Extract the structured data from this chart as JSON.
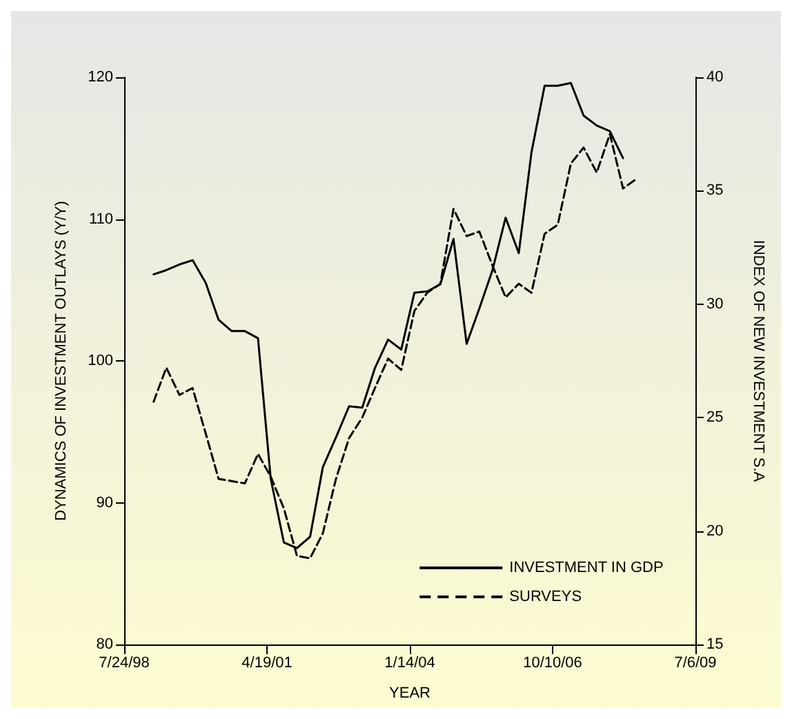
{
  "chart_data": {
    "type": "line",
    "xlabel": "YEAR",
    "ylabel": "DYNAMICS OF INVESTMENT OUTLAYS (Y/Y)",
    "y2label": "INDEX OF NEW INVESTMENT S.A",
    "x": [
      "1999-02-15",
      "1999-05-15",
      "1999-08-15",
      "1999-11-15",
      "2000-02-15",
      "2000-05-15",
      "2000-08-15",
      "2000-11-15",
      "2001-02-15",
      "2001-05-15",
      "2001-08-15",
      "2001-11-15",
      "2002-02-15",
      "2002-05-15",
      "2002-08-15",
      "2002-11-15",
      "2003-02-15",
      "2003-05-15",
      "2003-08-15",
      "2003-11-15",
      "2004-02-15",
      "2004-05-15",
      "2004-08-15",
      "2004-11-15",
      "2005-02-15",
      "2005-05-15",
      "2005-08-15",
      "2005-11-15",
      "2006-02-15",
      "2006-05-15",
      "2006-08-15",
      "2006-11-15",
      "2007-02-15",
      "2007-05-15",
      "2007-08-15",
      "2007-11-15",
      "2008-02-15",
      "2008-05-15"
    ],
    "series": [
      {
        "name": "INVESTMENT IN GDP",
        "color": "#000000",
        "line_style": "solid",
        "values": [
          106.1,
          106.4,
          106.8,
          107.1,
          105.5,
          102.9,
          102.1,
          102.1,
          101.6,
          91.7,
          87.2,
          86.8,
          87.6,
          92.5,
          94.6,
          96.8,
          96.7,
          99.5,
          101.5,
          100.8,
          104.8,
          104.9,
          105.4,
          108.6,
          101.2,
          103.7,
          106.4,
          110.1,
          107.6,
          114.7,
          119.4,
          119.4,
          119.6,
          117.3,
          116.6,
          116.2,
          114.3,
          null
        ]
      },
      {
        "name": "SURVEYS",
        "color": "#000000",
        "line_style": "dashed",
        "axis": "y2",
        "values": [
          25.7,
          27.2,
          26.0,
          26.3,
          24.3,
          22.3,
          22.2,
          22.1,
          23.4,
          22.4,
          21.0,
          18.9,
          18.8,
          19.9,
          22.3,
          24.1,
          25.0,
          26.3,
          27.6,
          27.1,
          29.7,
          30.5,
          30.9,
          34.2,
          33.0,
          33.2,
          31.7,
          30.3,
          30.9,
          30.5,
          33.1,
          33.5,
          36.2,
          36.9,
          35.8,
          37.5,
          35.1,
          35.5
        ]
      }
    ],
    "xlim": [
      "1998-07-24",
      "2009-07-06"
    ],
    "xticks": [
      {
        "value": "1998-07-24",
        "label": "7/24/98"
      },
      {
        "value": "2001-04-19",
        "label": "4/19/01"
      },
      {
        "value": "2004-01-14",
        "label": "1/14/04"
      },
      {
        "value": "2006-10-10",
        "label": "10/10/06"
      },
      {
        "value": "2009-07-06",
        "label": "7/6/09"
      }
    ],
    "ylim": [
      80,
      120
    ],
    "yticks": [
      80,
      90,
      100,
      110,
      120
    ],
    "y2lim": [
      15,
      40
    ],
    "y2ticks": [
      15,
      20,
      25,
      30,
      35,
      40
    ],
    "grid": false,
    "legend": "bottom right",
    "marker": "none"
  }
}
